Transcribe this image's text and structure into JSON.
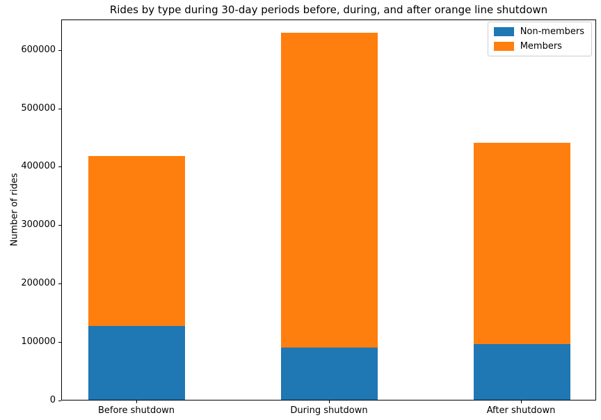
{
  "chart_data": {
    "type": "bar",
    "stacked": true,
    "title": "Rides by type during 30-day periods before, during, and after orange line shutdown",
    "xlabel": "",
    "ylabel": "Number of rides",
    "categories": [
      "Before shutdown",
      "During shutdown",
      "After shutdown"
    ],
    "series": [
      {
        "name": "Non-members",
        "color": "#1f77b4",
        "values": [
          127000,
          89000,
          95000
        ]
      },
      {
        "name": "Members",
        "color": "#ff7f0e",
        "values": [
          290000,
          539000,
          345000
        ]
      }
    ],
    "totals": [
      417000,
      628000,
      440000
    ],
    "ylim": [
      0,
      652000
    ],
    "yticks": [
      0,
      100000,
      200000,
      300000,
      400000,
      500000,
      600000
    ],
    "grid": false,
    "legend_position": "upper right"
  }
}
